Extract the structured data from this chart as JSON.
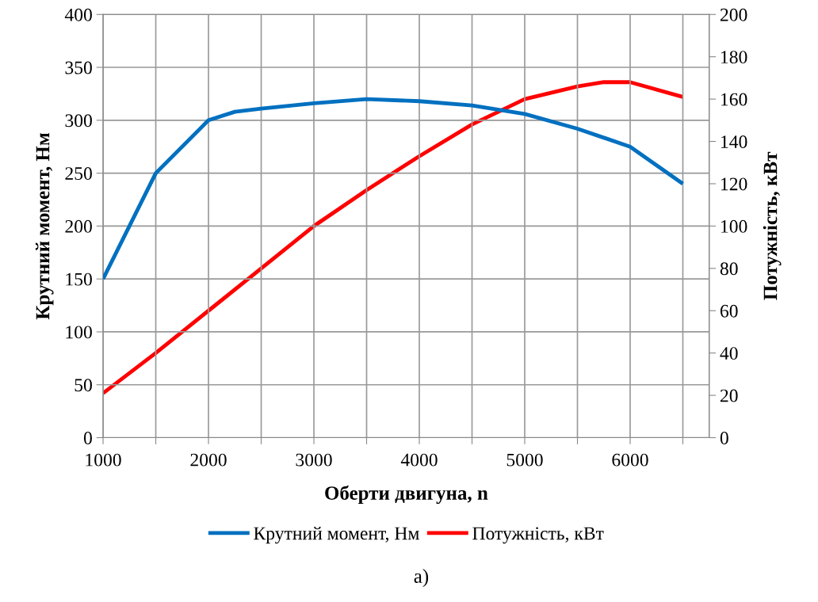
{
  "chart_data": {
    "type": "line",
    "xlabel": "Оберти двигуна, n",
    "ylabel": "Крутний момент, Нм",
    "y2label": "Потужність, кВт",
    "series": [
      {
        "name": "Крутний момент, Нм",
        "color": "#0070c0",
        "x": [
          1000,
          1500,
          2000,
          2250,
          2500,
          3000,
          3500,
          4000,
          4500,
          5000,
          5500,
          6000,
          6500
        ],
        "values": [
          150,
          250,
          300,
          308,
          311,
          316,
          320,
          318,
          314,
          306,
          292,
          275,
          240
        ]
      },
      {
        "name": "Потужність, кВт",
        "color": "#ff0000",
        "axis": "y2",
        "x": [
          1000,
          1500,
          2000,
          2500,
          3000,
          3500,
          4000,
          4500,
          5000,
          5500,
          5750,
          6000,
          6500
        ],
        "values": [
          21,
          40,
          60,
          80,
          100,
          117,
          133,
          148,
          160,
          166,
          168,
          168,
          161
        ]
      }
    ],
    "xlim": [
      1000,
      6750
    ],
    "xticks": [
      1000,
      {
        "value": 1500,
        "label": null
      },
      2000,
      {
        "value": 2500,
        "label": null
      },
      3000,
      {
        "value": 3500,
        "label": null
      },
      4000,
      {
        "value": 4500,
        "label": null
      },
      5000,
      {
        "value": 5500,
        "label": null
      },
      6000,
      {
        "value": 6500,
        "label": null
      }
    ],
    "ylim": [
      0,
      400
    ],
    "yticks": [
      0,
      50,
      100,
      150,
      200,
      250,
      300,
      350,
      400
    ],
    "y2lim": [
      0,
      200
    ],
    "y2ticks": [
      0,
      20,
      40,
      60,
      80,
      100,
      120,
      140,
      160,
      180,
      200
    ],
    "grid": true,
    "legend": "bottom",
    "line_style": "solid",
    "marker": "none",
    "annotations": [
      "а)"
    ]
  }
}
